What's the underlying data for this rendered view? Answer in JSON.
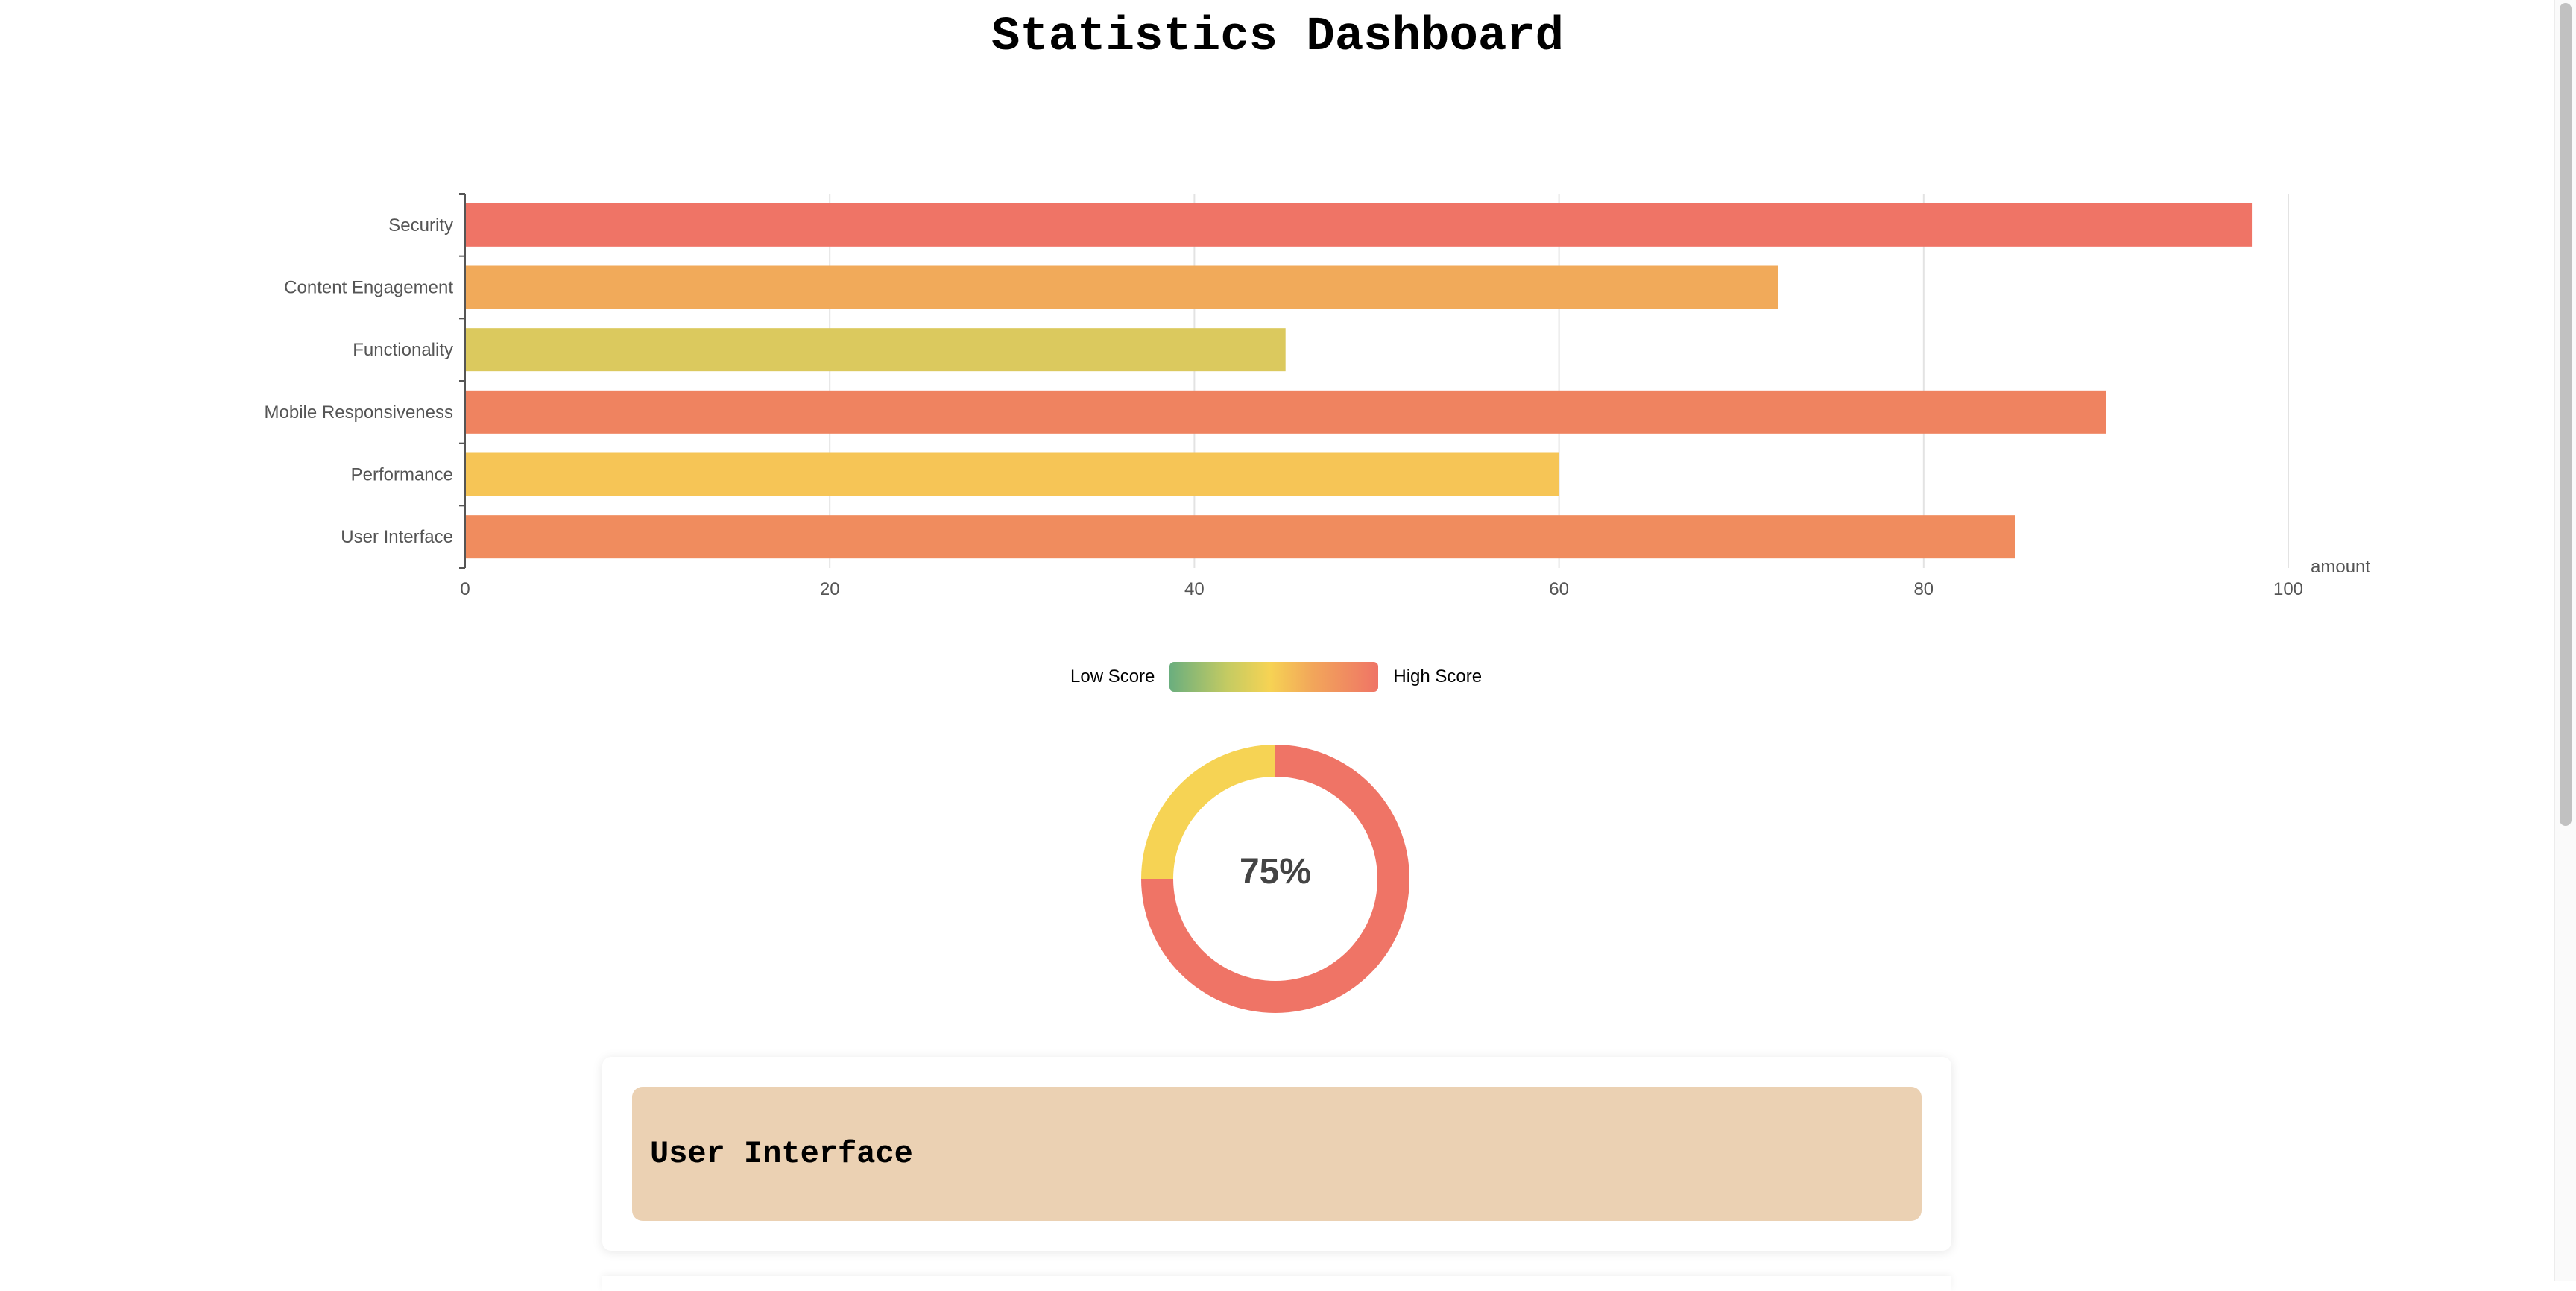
{
  "page": {
    "title": "Statistics Dashboard"
  },
  "chart_data": [
    {
      "type": "bar",
      "orientation": "horizontal",
      "categories": [
        "Security",
        "Content Engagement",
        "Functionality",
        "Mobile Responsiveness",
        "Performance",
        "User Interface"
      ],
      "values": [
        98,
        72,
        45,
        90,
        60,
        85
      ],
      "colors": [
        "#ef7466",
        "#f1aa5a",
        "#dbc95e",
        "#ef8360",
        "#f6c556",
        "#f08c5e"
      ],
      "xlim": [
        0,
        100
      ],
      "xticks": [
        0,
        20,
        40,
        60,
        80,
        100
      ],
      "xlabel": "amount",
      "grid": true
    },
    {
      "type": "pie",
      "variant": "donut",
      "values": [
        75,
        25
      ],
      "colors": [
        "#ef7466",
        "#f6d354"
      ],
      "center_label": "75%"
    }
  ],
  "legend": {
    "low_label": "Low Score",
    "high_label": "High Score",
    "gradient_colors": [
      "#6aae7e",
      "#c5cb62",
      "#f6d354",
      "#f2a75a",
      "#ef7466"
    ]
  },
  "card": {
    "title": "User Interface"
  }
}
